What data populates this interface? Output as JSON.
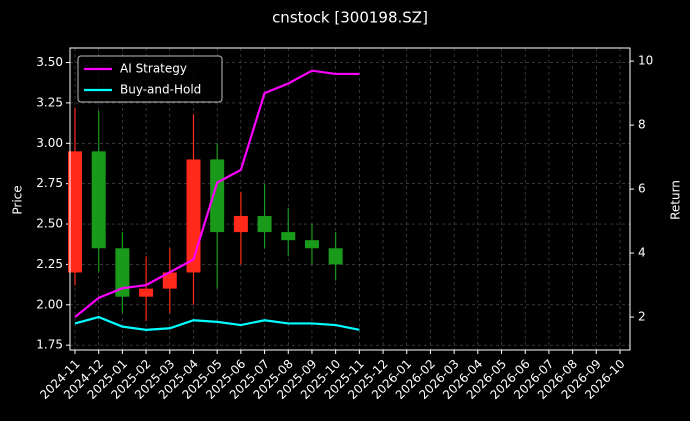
{
  "chart_data": {
    "type": "candlestick",
    "title": "cnstock [300198.SZ]",
    "ylabel": "Price",
    "y2label": "Return",
    "xticks": [
      "2024-11",
      "2024-12",
      "2025-01",
      "2025-02",
      "2025-03",
      "2025-04",
      "2025-05",
      "2025-06",
      "2025-07",
      "2025-08",
      "2025-09",
      "2025-10",
      "2025-11",
      "2025-12",
      "2026-01",
      "2026-02",
      "2026-03",
      "2026-04",
      "2026-05",
      "2026-06",
      "2026-07",
      "2026-08",
      "2026-09",
      "2026-10"
    ],
    "ylim": [
      1.72,
      3.59
    ],
    "yticks": [
      {
        "value": 1.75,
        "label": "1.75"
      },
      {
        "value": 2.0,
        "label": "2.00"
      },
      {
        "value": 2.25,
        "label": "2.25"
      },
      {
        "value": 2.5,
        "label": "2.50"
      },
      {
        "value": 2.75,
        "label": "2.75"
      },
      {
        "value": 3.0,
        "label": "3.00"
      },
      {
        "value": 3.25,
        "label": "3.25"
      },
      {
        "value": 3.5,
        "label": "3.50"
      }
    ],
    "y2lim": [
      0.97,
      10.41
    ],
    "y2ticks": [
      2,
      4,
      6,
      8,
      10
    ],
    "grid": true,
    "legend": "upper left",
    "candles": {
      "x": [
        "2024-11",
        "2024-12",
        "2025-01",
        "2025-02",
        "2025-03",
        "2025-04",
        "2025-05",
        "2025-06",
        "2025-07",
        "2025-08",
        "2025-09",
        "2025-10"
      ],
      "open": [
        2.2,
        2.95,
        2.35,
        2.05,
        2.1,
        2.2,
        2.9,
        2.45,
        2.55,
        2.45,
        2.4,
        2.35
      ],
      "high": [
        3.22,
        3.2,
        2.45,
        2.3,
        2.35,
        3.18,
        3.0,
        2.7,
        2.75,
        2.6,
        2.5,
        2.45
      ],
      "low": [
        2.12,
        2.2,
        1.95,
        1.9,
        1.95,
        2.0,
        2.1,
        2.25,
        2.35,
        2.3,
        2.25,
        2.15
      ],
      "close": [
        2.95,
        2.35,
        2.05,
        2.1,
        2.2,
        2.9,
        2.45,
        2.55,
        2.45,
        2.4,
        2.35,
        2.25
      ],
      "up_color": "#ff2a1a",
      "down_color": "#1a9a1a"
    },
    "x": [
      "2024-11",
      "2024-12",
      "2025-01",
      "2025-02",
      "2025-03",
      "2025-04",
      "2025-05",
      "2025-06",
      "2025-07",
      "2025-08",
      "2025-09",
      "2025-10",
      "2025-11"
    ],
    "series": [
      {
        "name": "AI Strategy",
        "color": "#ff00ff",
        "axis": "y2",
        "values": [
          2.0,
          2.6,
          2.9,
          3.0,
          3.4,
          3.8,
          6.2,
          6.6,
          9.0,
          9.3,
          9.7,
          9.6,
          9.6
        ]
      },
      {
        "name": "Buy-and-Hold",
        "color": "#00ffff",
        "axis": "y2",
        "values": [
          1.8,
          2.0,
          1.7,
          1.6,
          1.65,
          1.9,
          1.85,
          1.75,
          1.9,
          1.8,
          1.8,
          1.75,
          1.6
        ]
      }
    ]
  }
}
